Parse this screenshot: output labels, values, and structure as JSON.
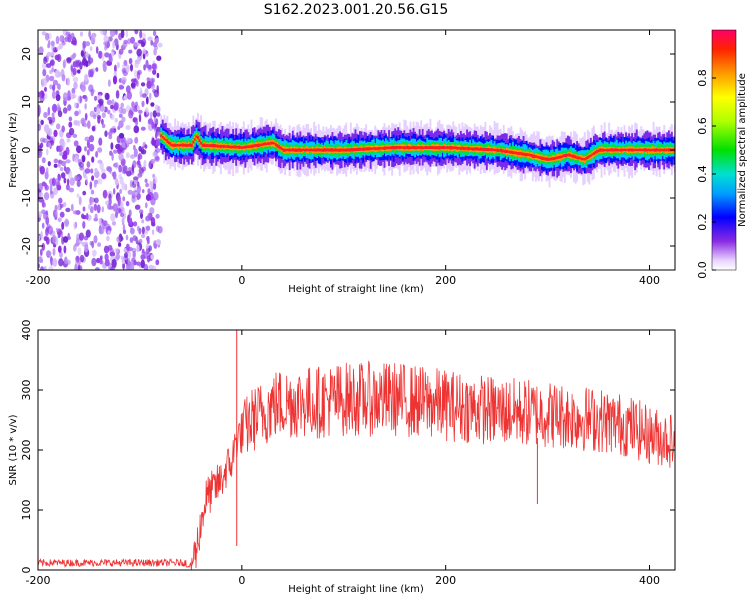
{
  "title": "S162.2023.001.20.56.G15",
  "chart_data": [
    {
      "type": "heatmap",
      "xlabel": "Height of straight line (km)",
      "ylabel": "Frequency (Hz)",
      "xlim": [
        -200,
        425
      ],
      "ylim": [
        -25,
        25
      ],
      "xticks": [
        -200,
        0,
        200,
        400
      ],
      "yticks": [
        -20,
        -10,
        0,
        10,
        20
      ],
      "noise_region_x": [
        -200,
        -80
      ],
      "signal_band_center_hz": [
        {
          "x": -80,
          "y": 3
        },
        {
          "x": -70,
          "y": 1
        },
        {
          "x": -50,
          "y": 1
        },
        {
          "x": -45,
          "y": 3
        },
        {
          "x": -40,
          "y": 1
        },
        {
          "x": 0,
          "y": 0.5
        },
        {
          "x": 30,
          "y": 1.5
        },
        {
          "x": 40,
          "y": 0
        },
        {
          "x": 100,
          "y": 0
        },
        {
          "x": 150,
          "y": 0.5
        },
        {
          "x": 200,
          "y": 0.5
        },
        {
          "x": 250,
          "y": 0
        },
        {
          "x": 280,
          "y": -1
        },
        {
          "x": 300,
          "y": -2
        },
        {
          "x": 320,
          "y": -1
        },
        {
          "x": 335,
          "y": -2
        },
        {
          "x": 350,
          "y": 0
        },
        {
          "x": 400,
          "y": 0
        },
        {
          "x": 425,
          "y": 0
        }
      ],
      "colorbar": {
        "label": "Normalized spectral amplitude",
        "range": [
          0,
          1
        ],
        "ticks": [
          "0.0",
          "0.2",
          "0.4",
          "0.6",
          "0.8"
        ]
      },
      "grid": false
    },
    {
      "type": "line",
      "xlabel": "Height of straight line (km)",
      "ylabel": "SNR (10 * v/v)",
      "xlim": [
        -200,
        425
      ],
      "ylim": [
        0,
        400
      ],
      "xticks": [
        -200,
        0,
        200,
        400
      ],
      "yticks": [
        0,
        100,
        200,
        300,
        400
      ],
      "series": [
        {
          "color": "#ee3333",
          "x": [
            -200,
            -150,
            -100,
            -60,
            -50,
            -45,
            -40,
            -35,
            -30,
            -25,
            -20,
            -15,
            -10,
            -5,
            0,
            10,
            20,
            30,
            50,
            75,
            100,
            150,
            200,
            250,
            300,
            350,
            380,
            400,
            425
          ],
          "y": [
            12,
            12,
            12,
            12,
            12,
            30,
            80,
            120,
            130,
            140,
            150,
            170,
            180,
            220,
            230,
            250,
            260,
            275,
            280,
            280,
            285,
            285,
            275,
            265,
            260,
            250,
            240,
            225,
            215
          ]
        }
      ],
      "annotations": [
        {
          "x": -5,
          "y": 400,
          "note": "spike"
        },
        {
          "x": 290,
          "y": 110,
          "note": "dip"
        }
      ],
      "grid": false
    }
  ]
}
